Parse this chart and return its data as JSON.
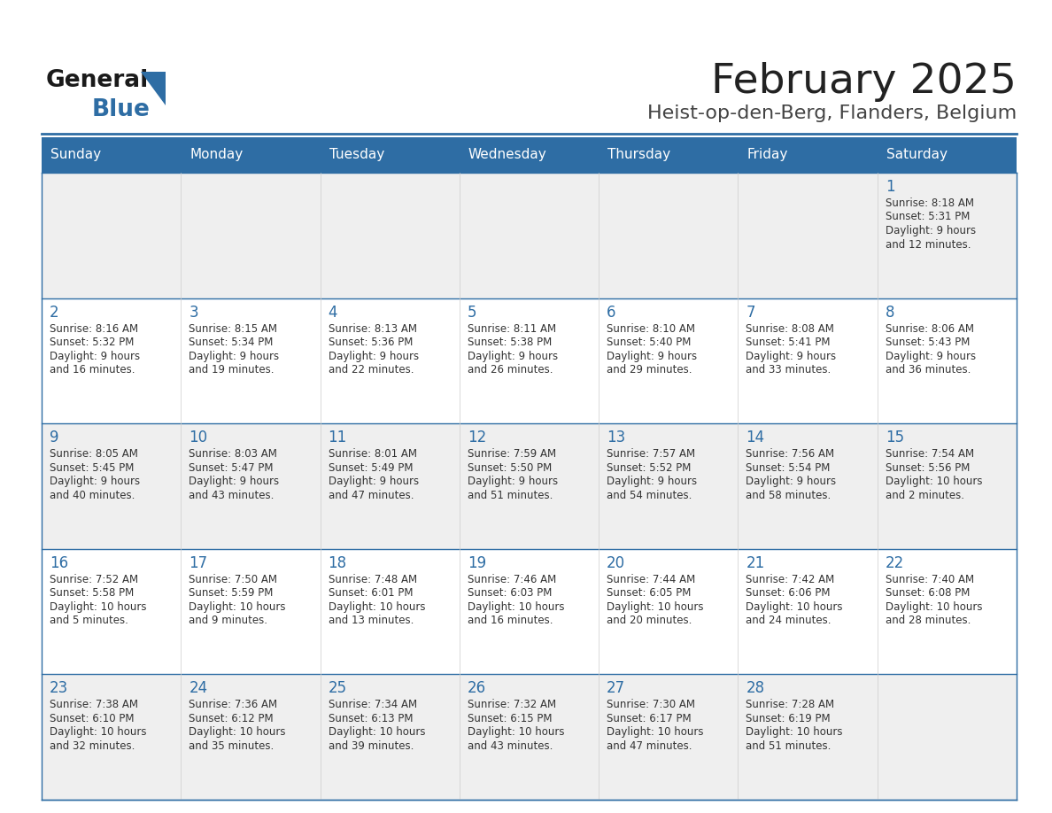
{
  "title": "February 2025",
  "subtitle": "Heist-op-den-Berg, Flanders, Belgium",
  "header_bg": "#2E6DA4",
  "header_text": "#FFFFFF",
  "row_bg_light": "#EFEFEF",
  "row_bg_white": "#FFFFFF",
  "border_color": "#2E6DA4",
  "cell_border_color": "#AAAAAA",
  "day_headers": [
    "Sunday",
    "Monday",
    "Tuesday",
    "Wednesday",
    "Thursday",
    "Friday",
    "Saturday"
  ],
  "title_color": "#222222",
  "subtitle_color": "#444444",
  "cell_text_color": "#333333",
  "day_num_color": "#2E6DA4",
  "logo_general_color": "#1a1a1a",
  "logo_blue_color": "#2E6DA4",
  "logo_triangle_color": "#2E6DA4",
  "calendar": [
    [
      null,
      null,
      null,
      null,
      null,
      null,
      {
        "day": 1,
        "sunrise": "8:18 AM",
        "sunset": "5:31 PM",
        "daylight": "9 hours\nand 12 minutes."
      }
    ],
    [
      {
        "day": 2,
        "sunrise": "8:16 AM",
        "sunset": "5:32 PM",
        "daylight": "9 hours\nand 16 minutes."
      },
      {
        "day": 3,
        "sunrise": "8:15 AM",
        "sunset": "5:34 PM",
        "daylight": "9 hours\nand 19 minutes."
      },
      {
        "day": 4,
        "sunrise": "8:13 AM",
        "sunset": "5:36 PM",
        "daylight": "9 hours\nand 22 minutes."
      },
      {
        "day": 5,
        "sunrise": "8:11 AM",
        "sunset": "5:38 PM",
        "daylight": "9 hours\nand 26 minutes."
      },
      {
        "day": 6,
        "sunrise": "8:10 AM",
        "sunset": "5:40 PM",
        "daylight": "9 hours\nand 29 minutes."
      },
      {
        "day": 7,
        "sunrise": "8:08 AM",
        "sunset": "5:41 PM",
        "daylight": "9 hours\nand 33 minutes."
      },
      {
        "day": 8,
        "sunrise": "8:06 AM",
        "sunset": "5:43 PM",
        "daylight": "9 hours\nand 36 minutes."
      }
    ],
    [
      {
        "day": 9,
        "sunrise": "8:05 AM",
        "sunset": "5:45 PM",
        "daylight": "9 hours\nand 40 minutes."
      },
      {
        "day": 10,
        "sunrise": "8:03 AM",
        "sunset": "5:47 PM",
        "daylight": "9 hours\nand 43 minutes."
      },
      {
        "day": 11,
        "sunrise": "8:01 AM",
        "sunset": "5:49 PM",
        "daylight": "9 hours\nand 47 minutes."
      },
      {
        "day": 12,
        "sunrise": "7:59 AM",
        "sunset": "5:50 PM",
        "daylight": "9 hours\nand 51 minutes."
      },
      {
        "day": 13,
        "sunrise": "7:57 AM",
        "sunset": "5:52 PM",
        "daylight": "9 hours\nand 54 minutes."
      },
      {
        "day": 14,
        "sunrise": "7:56 AM",
        "sunset": "5:54 PM",
        "daylight": "9 hours\nand 58 minutes."
      },
      {
        "day": 15,
        "sunrise": "7:54 AM",
        "sunset": "5:56 PM",
        "daylight": "10 hours\nand 2 minutes."
      }
    ],
    [
      {
        "day": 16,
        "sunrise": "7:52 AM",
        "sunset": "5:58 PM",
        "daylight": "10 hours\nand 5 minutes."
      },
      {
        "day": 17,
        "sunrise": "7:50 AM",
        "sunset": "5:59 PM",
        "daylight": "10 hours\nand 9 minutes."
      },
      {
        "day": 18,
        "sunrise": "7:48 AM",
        "sunset": "6:01 PM",
        "daylight": "10 hours\nand 13 minutes."
      },
      {
        "day": 19,
        "sunrise": "7:46 AM",
        "sunset": "6:03 PM",
        "daylight": "10 hours\nand 16 minutes."
      },
      {
        "day": 20,
        "sunrise": "7:44 AM",
        "sunset": "6:05 PM",
        "daylight": "10 hours\nand 20 minutes."
      },
      {
        "day": 21,
        "sunrise": "7:42 AM",
        "sunset": "6:06 PM",
        "daylight": "10 hours\nand 24 minutes."
      },
      {
        "day": 22,
        "sunrise": "7:40 AM",
        "sunset": "6:08 PM",
        "daylight": "10 hours\nand 28 minutes."
      }
    ],
    [
      {
        "day": 23,
        "sunrise": "7:38 AM",
        "sunset": "6:10 PM",
        "daylight": "10 hours\nand 32 minutes."
      },
      {
        "day": 24,
        "sunrise": "7:36 AM",
        "sunset": "6:12 PM",
        "daylight": "10 hours\nand 35 minutes."
      },
      {
        "day": 25,
        "sunrise": "7:34 AM",
        "sunset": "6:13 PM",
        "daylight": "10 hours\nand 39 minutes."
      },
      {
        "day": 26,
        "sunrise": "7:32 AM",
        "sunset": "6:15 PM",
        "daylight": "10 hours\nand 43 minutes."
      },
      {
        "day": 27,
        "sunrise": "7:30 AM",
        "sunset": "6:17 PM",
        "daylight": "10 hours\nand 47 minutes."
      },
      {
        "day": 28,
        "sunrise": "7:28 AM",
        "sunset": "6:19 PM",
        "daylight": "10 hours\nand 51 minutes."
      },
      null
    ]
  ]
}
